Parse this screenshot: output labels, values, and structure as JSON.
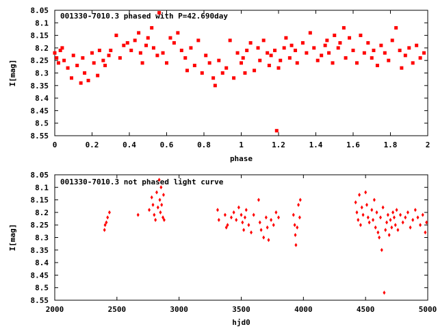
{
  "chart_data": [
    {
      "type": "scatter",
      "title": "001330-7010.3 phased with P=42.690day",
      "xlabel": "phase",
      "ylabel": "I[mag]",
      "xlim": [
        0,
        2
      ],
      "ylim": [
        8.55,
        8.05
      ],
      "y_inverted": true,
      "x_ticks": [
        "0",
        "0.2",
        "0.4",
        "0.6",
        "0.8",
        "1",
        "1.2",
        "1.4",
        "1.6",
        "1.8",
        "2"
      ],
      "y_ticks": [
        "8.05",
        "8.1",
        "8.15",
        "8.2",
        "8.25",
        "8.3",
        "8.35",
        "8.4",
        "8.45",
        "8.5",
        "8.55"
      ],
      "marker_color": "#ff0000",
      "marker": "filled-square",
      "grid": false,
      "series": [
        {
          "x": [
            0.0,
            0.01,
            0.02,
            0.03,
            0.04,
            0.05,
            0.07,
            0.09,
            0.1,
            0.12,
            0.14,
            0.15,
            0.16,
            0.18,
            0.2,
            0.21,
            0.23,
            0.24,
            0.26,
            0.27,
            0.29,
            0.3,
            0.33,
            0.35,
            0.37,
            0.39,
            0.41,
            0.43,
            0.45,
            0.46,
            0.47,
            0.49,
            0.5,
            0.52,
            0.53,
            0.55,
            0.56,
            0.58,
            0.6,
            0.62,
            0.64,
            0.66,
            0.68,
            0.7,
            0.71,
            0.73,
            0.75,
            0.77,
            0.79,
            0.81,
            0.83,
            0.85,
            0.86,
            0.88,
            0.9,
            0.92,
            0.94,
            0.96,
            0.98,
            1.0,
            1.01,
            1.02,
            1.03,
            1.05,
            1.07,
            1.09,
            1.1,
            1.12,
            1.14,
            1.15,
            1.16,
            1.18,
            1.19,
            1.2,
            1.21,
            1.23,
            1.24,
            1.26,
            1.27,
            1.29,
            1.3,
            1.33,
            1.35,
            1.37,
            1.39,
            1.41,
            1.43,
            1.45,
            1.46,
            1.47,
            1.49,
            1.5,
            1.52,
            1.53,
            1.55,
            1.56,
            1.58,
            1.6,
            1.62,
            1.64,
            1.66,
            1.68,
            1.7,
            1.71,
            1.73,
            1.75,
            1.77,
            1.79,
            1.81,
            1.83,
            1.85,
            1.86,
            1.88,
            1.9,
            1.92,
            1.94,
            1.96,
            1.98
          ],
          "y": [
            8.22,
            8.24,
            8.26,
            8.21,
            8.2,
            8.25,
            8.28,
            8.32,
            8.23,
            8.27,
            8.34,
            8.24,
            8.3,
            8.33,
            8.22,
            8.26,
            8.31,
            8.21,
            8.25,
            8.27,
            8.23,
            8.21,
            8.15,
            8.24,
            8.19,
            8.18,
            8.21,
            8.17,
            8.14,
            8.22,
            8.26,
            8.19,
            8.16,
            8.12,
            8.2,
            8.23,
            8.06,
            8.22,
            8.26,
            8.16,
            8.18,
            8.14,
            8.21,
            8.24,
            8.29,
            8.2,
            8.27,
            8.17,
            8.3,
            8.23,
            8.26,
            8.32,
            8.35,
            8.25,
            8.3,
            8.28,
            8.17,
            8.32,
            8.22,
            8.26,
            8.24,
            8.3,
            8.21,
            8.18,
            8.29,
            8.2,
            8.25,
            8.17,
            8.22,
            8.27,
            8.23,
            8.21,
            8.53,
            8.28,
            8.25,
            8.2,
            8.16,
            8.24,
            8.19,
            8.21,
            8.26,
            8.18,
            8.22,
            8.14,
            8.2,
            8.25,
            8.23,
            8.19,
            8.17,
            8.22,
            8.26,
            8.15,
            8.2,
            8.18,
            8.12,
            8.24,
            8.16,
            8.21,
            8.26,
            8.15,
            8.22,
            8.18,
            8.24,
            8.21,
            8.27,
            8.19,
            8.22,
            8.25,
            8.17,
            8.12,
            8.21,
            8.28,
            8.23,
            8.2,
            8.26,
            8.19,
            8.24,
            8.22
          ]
        }
      ]
    },
    {
      "type": "scatter",
      "title": "001330-7010.3 not phased light curve",
      "xlabel": "hjd0",
      "ylabel": "I[mag]",
      "xlim": [
        2000,
        5000
      ],
      "ylim": [
        8.55,
        8.05
      ],
      "y_inverted": true,
      "x_ticks": [
        "2000",
        "2500",
        "3000",
        "3500",
        "4000",
        "4500",
        "5000"
      ],
      "y_ticks": [
        "8.05",
        "8.1",
        "8.15",
        "8.2",
        "8.25",
        "8.3",
        "8.35",
        "8.4",
        "8.45",
        "8.5",
        "8.55"
      ],
      "marker_color": "#ff0000",
      "marker": "filled-diamond",
      "grid": false,
      "series": [
        {
          "x": [
            2400,
            2405,
            2415,
            2425,
            2440,
            2670,
            2760,
            2780,
            2790,
            2800,
            2810,
            2820,
            2830,
            2840,
            2845,
            2850,
            2855,
            2860,
            2870,
            2875,
            2880,
            3310,
            3320,
            3370,
            3380,
            3390,
            3420,
            3440,
            3460,
            3480,
            3500,
            3510,
            3520,
            3530,
            3540,
            3560,
            3580,
            3600,
            3640,
            3650,
            3660,
            3680,
            3700,
            3710,
            3720,
            3740,
            3760,
            3780,
            3800,
            3920,
            3930,
            3935,
            3940,
            3950,
            3960,
            3970,
            3975,
            4420,
            4430,
            4440,
            4450,
            4460,
            4470,
            4480,
            4500,
            4510,
            4520,
            4530,
            4550,
            4560,
            4570,
            4580,
            4590,
            4600,
            4610,
            4620,
            4630,
            4640,
            4650,
            4660,
            4670,
            4680,
            4690,
            4700,
            4710,
            4720,
            4730,
            4740,
            4750,
            4760,
            4780,
            4800,
            4820,
            4840,
            4860,
            4880,
            4900,
            4920,
            4940,
            4960,
            4980,
            4990
          ],
          "y": [
            8.27,
            8.25,
            8.24,
            8.22,
            8.2,
            8.21,
            8.19,
            8.14,
            8.17,
            8.21,
            8.23,
            8.12,
            8.18,
            8.07,
            8.15,
            8.2,
            8.1,
            8.17,
            8.22,
            8.13,
            8.23,
            8.19,
            8.23,
            8.21,
            8.26,
            8.25,
            8.22,
            8.2,
            8.23,
            8.18,
            8.21,
            8.24,
            8.27,
            8.22,
            8.19,
            8.25,
            8.28,
            8.21,
            8.15,
            8.24,
            8.27,
            8.3,
            8.22,
            8.26,
            8.31,
            8.23,
            8.25,
            8.2,
            8.22,
            8.21,
            8.25,
            8.29,
            8.33,
            8.26,
            8.17,
            8.22,
            8.15,
            8.16,
            8.2,
            8.23,
            8.13,
            8.25,
            8.18,
            8.21,
            8.12,
            8.17,
            8.22,
            8.24,
            8.19,
            8.23,
            8.15,
            8.26,
            8.2,
            8.28,
            8.3,
            8.22,
            8.35,
            8.18,
            8.52,
            8.27,
            8.24,
            8.21,
            8.29,
            8.23,
            8.26,
            8.2,
            8.22,
            8.25,
            8.19,
            8.27,
            8.21,
            8.24,
            8.22,
            8.2,
            8.26,
            8.23,
            8.19,
            8.22,
            8.25,
            8.21,
            8.28,
            8.24
          ]
        }
      ]
    }
  ]
}
